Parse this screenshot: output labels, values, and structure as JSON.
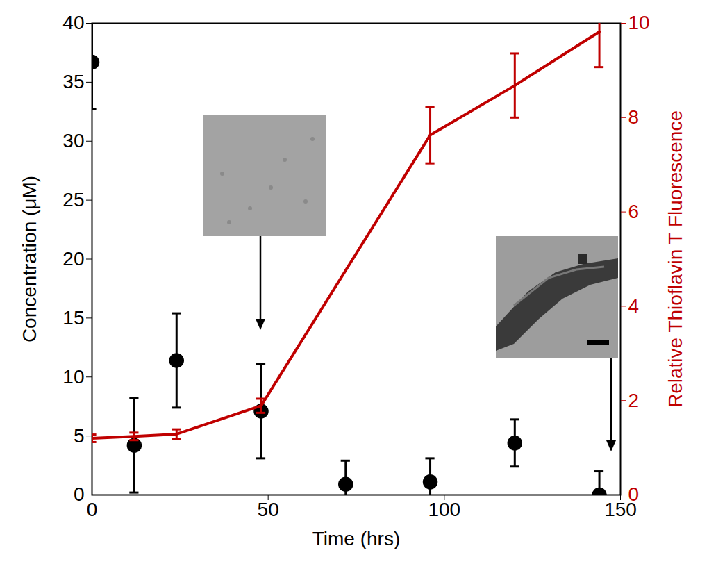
{
  "chart_data": {
    "type": "scatter",
    "x_label": "Time (hrs)",
    "y_label": "Concentration (μM)",
    "y2_label": "Relative Thioflavin T Fluorescence",
    "xlim": [
      0,
      150
    ],
    "xticks": [
      0,
      50,
      100,
      150
    ],
    "ylim": [
      0,
      40
    ],
    "yticks": [
      0,
      5,
      10,
      15,
      20,
      25,
      30,
      35,
      40
    ],
    "y2lim": [
      0,
      10
    ],
    "y2ticks": [
      0,
      2,
      4,
      6,
      8,
      10
    ],
    "series": [
      {
        "type": "scatter",
        "color": "#000000",
        "marker": "circle",
        "x": [
          0,
          12,
          24,
          48,
          72,
          96,
          120,
          144
        ],
        "values": [
          36.7,
          4.2,
          11.4,
          7.1,
          0.9,
          1.1,
          4.4,
          0
        ],
        "errors": [
          4,
          4,
          4,
          4,
          2,
          2,
          2,
          2
        ]
      },
      {
        "type": "line",
        "axis": "y2",
        "color": "#c00000",
        "x": [
          0,
          12,
          24,
          48,
          96,
          120,
          144
        ],
        "values": [
          1.2,
          1.24,
          1.29,
          1.89,
          7.63,
          8.68,
          9.82
        ],
        "errors": [
          0.08,
          0.08,
          0.1,
          0.15,
          0.6,
          0.68,
          0.75
        ]
      }
    ]
  }
}
